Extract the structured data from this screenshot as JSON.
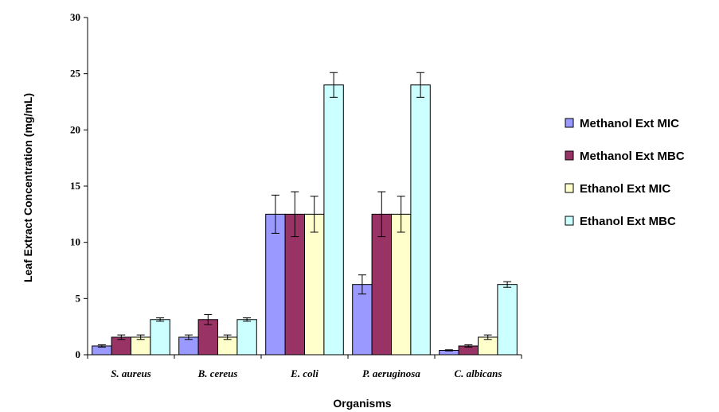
{
  "chart_data": {
    "type": "bar",
    "title": "",
    "xlabel": "Organisms",
    "ylabel": "Leaf Extract Concentration (mg/mL)",
    "ylim": [
      0,
      30
    ],
    "yticks": [
      0,
      5,
      10,
      15,
      20,
      25,
      30
    ],
    "categories": [
      "S. aureus",
      "B. cereus",
      "E. coli",
      "P. aeruginosa",
      "C. albicans"
    ],
    "grid": false,
    "legend_position": "right",
    "series": [
      {
        "name": "Methanol Ext MIC",
        "color": "#9999FF",
        "values": [
          0.78,
          1.56,
          12.5,
          6.25,
          0.39
        ],
        "errors": [
          0.1,
          0.2,
          1.7,
          0.85,
          0.05
        ]
      },
      {
        "name": "Methanol Ext MBC",
        "color": "#993366",
        "values": [
          1.56,
          3.13,
          12.5,
          12.5,
          0.78
        ],
        "errors": [
          0.2,
          0.45,
          2.0,
          2.0,
          0.1
        ]
      },
      {
        "name": "Ethanol Ext MIC",
        "color": "#FFFFCC",
        "values": [
          1.56,
          1.56,
          12.5,
          12.5,
          1.56
        ],
        "errors": [
          0.2,
          0.2,
          1.6,
          1.6,
          0.2
        ]
      },
      {
        "name": "Ethanol Ext MBC",
        "color": "#CCFFFF",
        "values": [
          3.13,
          3.13,
          24.0,
          24.0,
          6.25
        ],
        "errors": [
          0.15,
          0.15,
          1.1,
          1.1,
          0.25
        ]
      }
    ]
  }
}
